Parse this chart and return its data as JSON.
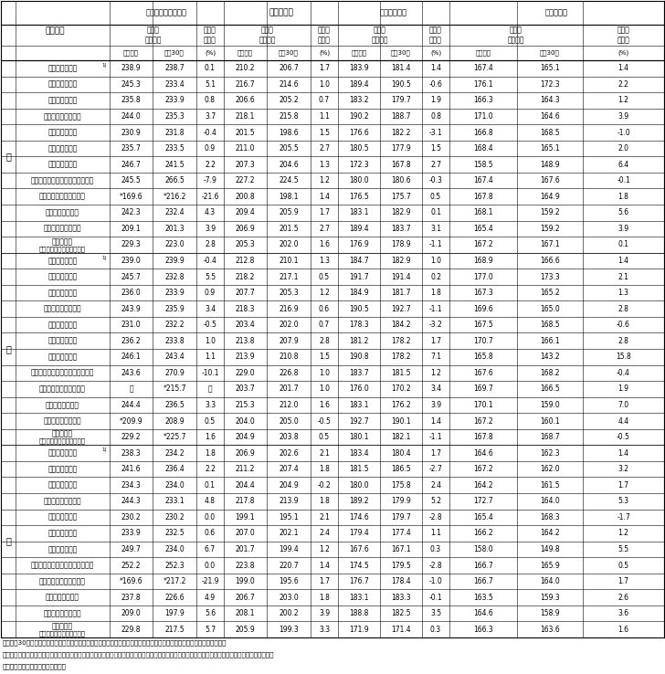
{
  "sections": [
    {
      "gender_label": "計",
      "rows": [
        {
          "label": "産　　業　　計",
          "sup": "1)",
          "d": [
            "238.9",
            "238.7",
            "0.1",
            "210.2",
            "206.7",
            "1.7",
            "183.9",
            "181.4",
            "1.4",
            "167.4",
            "165.1",
            "1.4"
          ]
        },
        {
          "label": "建　　設　　業",
          "sup": "",
          "d": [
            "245.3",
            "233.4",
            "5.1",
            "216.7",
            "214.6",
            "1.0",
            "189.4",
            "190.5",
            "-0.6",
            "176.1",
            "172.3",
            "2.2"
          ]
        },
        {
          "label": "製　　造　　業",
          "sup": "",
          "d": [
            "235.8",
            "233.9",
            "0.8",
            "206.6",
            "205.2",
            "0.7",
            "183.2",
            "179.7",
            "1.9",
            "166.3",
            "164.3",
            "1.2"
          ]
        },
        {
          "label": "情　報　通　信　業",
          "sup": "",
          "d": [
            "244.0",
            "235.3",
            "3.7",
            "218.1",
            "215.8",
            "1.1",
            "190.2",
            "188.7",
            "0.8",
            "171.0",
            "164.6",
            "3.9"
          ]
        },
        {
          "label": "運輸業，郵便業",
          "sup": "",
          "d": [
            "230.9",
            "231.8",
            "-0.4",
            "201.5",
            "198.6",
            "1.5",
            "176.6",
            "182.2",
            "-3.1",
            "166.8",
            "168.5",
            "-1.0"
          ]
        },
        {
          "label": "卸売業，小売業",
          "sup": "",
          "d": [
            "235.7",
            "233.5",
            "0.9",
            "211.0",
            "205.5",
            "2.7",
            "180.5",
            "177.9",
            "1.5",
            "168.4",
            "165.1",
            "2.0"
          ]
        },
        {
          "label": "金融業，保険業",
          "sup": "",
          "d": [
            "246.7",
            "241.5",
            "2.2",
            "207.3",
            "204.6",
            "1.3",
            "172.3",
            "167.8",
            "2.7",
            "158.5",
            "148.9",
            "6.4"
          ]
        },
        {
          "label": "学術研究，専門・技術サービス業",
          "sup": "",
          "d": [
            "245.5",
            "266.5",
            "-7.9",
            "227.2",
            "224.5",
            "1.2",
            "180.0",
            "180.6",
            "-0.3",
            "167.4",
            "167.6",
            "-0.1"
          ]
        },
        {
          "label": "宿泊業，飲食サービス業",
          "sup": "",
          "d": [
            "*169.6",
            "*216.2",
            "-21.6",
            "200.8",
            "198.1",
            "1.4",
            "176.5",
            "175.7",
            "0.5",
            "167.8",
            "164.9",
            "1.8"
          ]
        },
        {
          "label": "教育，学習支援業",
          "sup": "",
          "d": [
            "242.3",
            "232.4",
            "4.3",
            "209.4",
            "205.9",
            "1.7",
            "183.1",
            "182.9",
            "0.1",
            "168.1",
            "159.2",
            "5.6"
          ]
        },
        {
          "label": "医　療　，　福　社",
          "sup": "",
          "d": [
            "209.1",
            "201.3",
            "3.9",
            "206.9",
            "201.5",
            "2.7",
            "189.4",
            "183.7",
            "3.1",
            "165.4",
            "159.2",
            "3.9"
          ]
        },
        {
          "label2": "サービス業",
          "label3": "（他に分類されないもの）",
          "sup": "",
          "d": [
            "229.3",
            "223.0",
            "2.8",
            "205.3",
            "202.0",
            "1.6",
            "176.9",
            "178.9",
            "-1.1",
            "167.2",
            "167.1",
            "0.1"
          ]
        }
      ]
    },
    {
      "gender_label": "男",
      "rows": [
        {
          "label": "産　　業　　計",
          "sup": "1)",
          "d": [
            "239.0",
            "239.9",
            "-0.4",
            "212.8",
            "210.1",
            "1.3",
            "184.7",
            "182.9",
            "1.0",
            "168.9",
            "166.6",
            "1.4"
          ]
        },
        {
          "label": "建　　設　　業",
          "sup": "",
          "d": [
            "245.7",
            "232.8",
            "5.5",
            "218.2",
            "217.1",
            "0.5",
            "191.7",
            "191.4",
            "0.2",
            "177.0",
            "173.3",
            "2.1"
          ]
        },
        {
          "label": "製　　造　　業",
          "sup": "",
          "d": [
            "236.0",
            "233.9",
            "0.9",
            "207.7",
            "205.3",
            "1.2",
            "184.9",
            "181.7",
            "1.8",
            "167.3",
            "165.2",
            "1.3"
          ]
        },
        {
          "label": "情　報　通　信　業",
          "sup": "",
          "d": [
            "243.9",
            "235.9",
            "3.4",
            "218.3",
            "216.9",
            "0.6",
            "190.5",
            "192.7",
            "-1.1",
            "169.6",
            "165.0",
            "2.8"
          ]
        },
        {
          "label": "運輸業，郵便業",
          "sup": "",
          "d": [
            "231.0",
            "232.2",
            "-0.5",
            "203.4",
            "202.0",
            "0.7",
            "178.3",
            "184.2",
            "-3.2",
            "167.5",
            "168.5",
            "-0.6"
          ]
        },
        {
          "label": "卸売業，小売業",
          "sup": "",
          "d": [
            "236.2",
            "233.8",
            "1.0",
            "213.8",
            "207.9",
            "2.8",
            "181.2",
            "178.2",
            "1.7",
            "170.7",
            "166.1",
            "2.8"
          ]
        },
        {
          "label": "金融業，保険業",
          "sup": "",
          "d": [
            "246.1",
            "243.4",
            "1.1",
            "213.9",
            "210.8",
            "1.5",
            "190.8",
            "178.2",
            "7.1",
            "165.8",
            "143.2",
            "15.8"
          ]
        },
        {
          "label": "学術研究，専門・技術サービス業",
          "sup": "",
          "d": [
            "243.6",
            "270.9",
            "-10.1",
            "229.0",
            "226.8",
            "1.0",
            "183.7",
            "181.5",
            "1.2",
            "167.6",
            "168.2",
            "-0.4"
          ]
        },
        {
          "label": "宿泊業，飲食サービス業",
          "sup": "",
          "d": [
            "－",
            "*215.7",
            "－",
            "203.7",
            "201.7",
            "1.0",
            "176.0",
            "170.2",
            "3.4",
            "169.7",
            "166.5",
            "1.9"
          ]
        },
        {
          "label": "教育，学習支援業",
          "sup": "",
          "d": [
            "244.4",
            "236.5",
            "3.3",
            "215.3",
            "212.0",
            "1.6",
            "183.1",
            "176.2",
            "3.9",
            "170.1",
            "159.0",
            "7.0"
          ]
        },
        {
          "label": "医　療　，　福　社",
          "sup": "",
          "d": [
            "*209.9",
            "208.9",
            "0.5",
            "204.0",
            "205.0",
            "-0.5",
            "192.7",
            "190.1",
            "1.4",
            "167.2",
            "160.1",
            "4.4"
          ]
        },
        {
          "label2": "サービス業",
          "label3": "（他に分類されないもの）",
          "sup": "",
          "d": [
            "229.2",
            "*225.7",
            "1.6",
            "204.9",
            "203.8",
            "0.5",
            "180.1",
            "182.1",
            "-1.1",
            "167.8",
            "168.7",
            "-0.5"
          ]
        }
      ]
    },
    {
      "gender_label": "女",
      "rows": [
        {
          "label": "産　　業　　計",
          "sup": "1)",
          "d": [
            "238.3",
            "234.2",
            "1.8",
            "206.9",
            "202.6",
            "2.1",
            "183.4",
            "180.4",
            "1.7",
            "164.6",
            "162.3",
            "1.4"
          ]
        },
        {
          "label": "建　　設　　業",
          "sup": "",
          "d": [
            "241.6",
            "236.4",
            "2.2",
            "211.2",
            "207.4",
            "1.8",
            "181.5",
            "186.5",
            "-2.7",
            "167.2",
            "162.0",
            "3.2"
          ]
        },
        {
          "label": "製　　造　　業",
          "sup": "",
          "d": [
            "234.3",
            "234.0",
            "0.1",
            "204.4",
            "204.9",
            "-0.2",
            "180.0",
            "175.8",
            "2.4",
            "164.2",
            "161.5",
            "1.7"
          ]
        },
        {
          "label": "情　報　通　信　業",
          "sup": "",
          "d": [
            "244.3",
            "233.1",
            "4.8",
            "217.8",
            "213.9",
            "1.8",
            "189.2",
            "179.9",
            "5.2",
            "172.7",
            "164.0",
            "5.3"
          ]
        },
        {
          "label": "運輸業，郵便業",
          "sup": "",
          "d": [
            "230.2",
            "230.2",
            "0.0",
            "199.1",
            "195.1",
            "2.1",
            "174.6",
            "179.7",
            "-2.8",
            "165.4",
            "168.3",
            "-1.7"
          ]
        },
        {
          "label": "卸売業，小売業",
          "sup": "",
          "d": [
            "233.9",
            "232.5",
            "0.6",
            "207.0",
            "202.1",
            "2.4",
            "179.4",
            "177.4",
            "1.1",
            "166.2",
            "164.2",
            "1.2"
          ]
        },
        {
          "label": "金融業，保険業",
          "sup": "",
          "d": [
            "249.7",
            "234.0",
            "6.7",
            "201.7",
            "199.4",
            "1.2",
            "167.6",
            "167.1",
            "0.3",
            "158.0",
            "149.8",
            "5.5"
          ]
        },
        {
          "label": "学術研究，専門・技術サービス業",
          "sup": "",
          "d": [
            "252.2",
            "252.3",
            "0.0",
            "223.8",
            "220.7",
            "1.4",
            "174.5",
            "179.5",
            "-2.8",
            "166.7",
            "165.9",
            "0.5"
          ]
        },
        {
          "label": "宿泊業，飲食サービス業",
          "sup": "",
          "d": [
            "*169.6",
            "*217.2",
            "-21.9",
            "199.0",
            "195.6",
            "1.7",
            "176.7",
            "178.4",
            "-1.0",
            "166.7",
            "164.0",
            "1.7"
          ]
        },
        {
          "label": "教育，学習支援業",
          "sup": "",
          "d": [
            "237.8",
            "226.6",
            "4.9",
            "206.7",
            "203.0",
            "1.8",
            "183.1",
            "183.3",
            "-0.1",
            "163.5",
            "159.3",
            "2.6"
          ]
        },
        {
          "label": "医　療　，　福　社",
          "sup": "",
          "d": [
            "209.0",
            "197.9",
            "5.6",
            "208.1",
            "200.2",
            "3.9",
            "188.8",
            "182.5",
            "3.5",
            "164.6",
            "158.9",
            "3.6"
          ]
        },
        {
          "label2": "サービス業",
          "label3": "（他に分類されないもの）",
          "sup": "",
          "d": [
            "229.8",
            "217.5",
            "5.7",
            "205.9",
            "199.3",
            "3.3",
            "171.9",
            "171.4",
            "0.3",
            "166.3",
            "163.6",
            "1.6"
          ]
        }
      ]
    }
  ],
  "notes": [
    "注　平成30年は、調査対象業種「宿泊業、飲食サービス業」のうち「バー、キャバレー、ナイトクラブ」を除外している。",
    "　１）本表には、上掲の産業のほか、鉱業、採石業、砂利採取業、電気・ガス・熱供給・水道業、不動産業、物品賃貸業、生活関連サービス業、娯楽業",
    "　　及び複合サービス事業を含む。"
  ]
}
